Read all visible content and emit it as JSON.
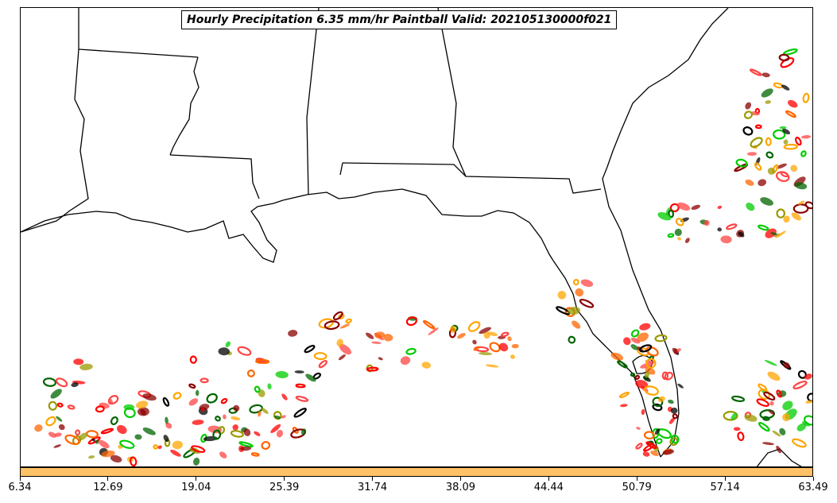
{
  "title": "Hourly Precipitation 6.35 mm/hr Paintball Valid: 202105130000f021",
  "colorbar": {
    "color": "#ffc266",
    "tick_labels": [
      "6.34",
      "12.69",
      "19.04",
      "25.39",
      "31.74",
      "38.09",
      "44.44",
      "50.79",
      "57.14",
      "63.49"
    ]
  },
  "paintball_colors": [
    "#000000",
    "#8b0000",
    "#ff0000",
    "#ff6600",
    "#ffa500",
    "#9a9a00",
    "#00cc00",
    "#006400",
    "#ff4444"
  ],
  "regions": [
    "Louisiana",
    "Mississippi",
    "Alabama",
    "Georgia",
    "Florida",
    "Gulf of Mexico",
    "Atlantic Ocean",
    "Cuba"
  ]
}
